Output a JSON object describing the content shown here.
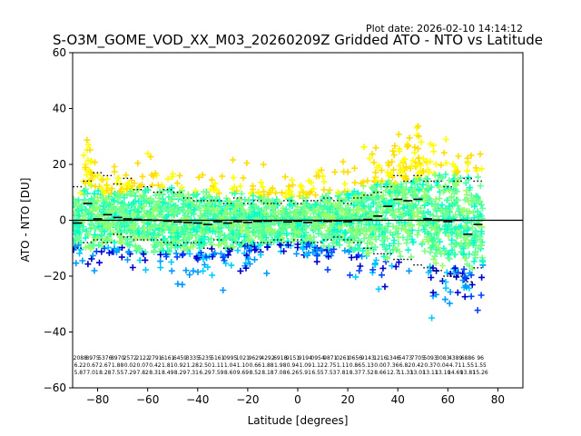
{
  "plot_date": "Plot date: 2026-02-10 14:14:12",
  "chart_data": {
    "type": "scatter",
    "title": "S-O3M_GOME_VOD_XX_M03_20260209Z Gridded ATO - NTO vs Latitude",
    "xlabel": "Latitude [degrees]",
    "ylabel": "ATO - NTO [DU]",
    "xlim": [
      -90,
      90
    ],
    "ylim": [
      -60,
      60
    ],
    "xticks": [
      -80,
      -60,
      -40,
      -20,
      0,
      20,
      40,
      60,
      80
    ],
    "yticks": [
      -60,
      -40,
      -20,
      0,
      20,
      40,
      60
    ],
    "xtick_labels": [
      "−80",
      "−60",
      "−40",
      "−20",
      "0",
      "20",
      "40",
      "60",
      "80"
    ],
    "ytick_labels": [
      "−60",
      "−40",
      "−20",
      "0",
      "20",
      "40",
      "60"
    ],
    "grid": false,
    "zero_line": 0,
    "point_colors": [
      "#66ff99",
      "#7fff7f",
      "#99ff66",
      "#00ffcc",
      "#33ffaa",
      "#ffff00",
      "#ffdd00",
      "#00ccff",
      "#0099ff",
      "#0044ff",
      "#0000cc"
    ],
    "bins": [
      {
        "lat": -88,
        "mean": -1.0,
        "std": 7.0,
        "upper": 12,
        "lower": -10
      },
      {
        "lat": -84,
        "mean": 6.0,
        "std": 10.5,
        "upper": 14,
        "lower": -8
      },
      {
        "lat": -80,
        "mean": 0.5,
        "std": 9.0,
        "upper": 17,
        "lower": -7
      },
      {
        "lat": -76,
        "mean": 2.0,
        "std": 7.5,
        "upper": 16,
        "lower": -8
      },
      {
        "lat": -72,
        "mean": 1.0,
        "std": 8.0,
        "upper": 13,
        "lower": -5
      },
      {
        "lat": -68,
        "mean": 0.5,
        "std": 9.0,
        "upper": 15,
        "lower": -6
      },
      {
        "lat": -64,
        "mean": 0.3,
        "std": 9.5,
        "upper": 11,
        "lower": -7
      },
      {
        "lat": -60,
        "mean": 0.1,
        "std": 10.0,
        "upper": 12,
        "lower": -7
      },
      {
        "lat": -56,
        "mean": 0.0,
        "std": 9.5,
        "upper": 10,
        "lower": -7
      },
      {
        "lat": -52,
        "mean": -0.3,
        "std": 10.0,
        "upper": 11,
        "lower": -8
      },
      {
        "lat": -48,
        "mean": -0.6,
        "std": 9.5,
        "upper": 10,
        "lower": -9
      },
      {
        "lat": -44,
        "mean": -0.8,
        "std": 9.0,
        "upper": 8,
        "lower": -8
      },
      {
        "lat": -40,
        "mean": -1.0,
        "std": 8.5,
        "upper": 7,
        "lower": -8
      },
      {
        "lat": -36,
        "mean": -1.5,
        "std": 8.5,
        "upper": 7,
        "lower": -10
      },
      {
        "lat": -32,
        "mean": -0.5,
        "std": 8.0,
        "upper": 7,
        "lower": -7
      },
      {
        "lat": -28,
        "mean": -1.0,
        "std": 8.5,
        "upper": 6,
        "lower": -10
      },
      {
        "lat": -24,
        "mean": -0.5,
        "std": 8.0,
        "upper": 8,
        "lower": -8
      },
      {
        "lat": -20,
        "mean": -0.8,
        "std": 7.5,
        "upper": 6,
        "lower": -9
      },
      {
        "lat": -16,
        "mean": -0.4,
        "std": 7.5,
        "upper": 7,
        "lower": -8
      },
      {
        "lat": -12,
        "mean": -0.3,
        "std": 7.0,
        "upper": 6,
        "lower": -8
      },
      {
        "lat": -8,
        "mean": -0.1,
        "std": 7.0,
        "upper": 6,
        "lower": -7
      },
      {
        "lat": -4,
        "mean": -0.6,
        "std": 7.0,
        "upper": 7,
        "lower": -8
      },
      {
        "lat": 0,
        "mean": -0.3,
        "std": 6.5,
        "upper": 6,
        "lower": -7
      },
      {
        "lat": 4,
        "mean": -0.8,
        "std": 7.0,
        "upper": 7,
        "lower": -8
      },
      {
        "lat": 8,
        "mean": -0.2,
        "std": 7.5,
        "upper": 7,
        "lower": -8
      },
      {
        "lat": 12,
        "mean": -0.4,
        "std": 8.0,
        "upper": 8,
        "lower": -7
      },
      {
        "lat": 16,
        "mean": -0.2,
        "std": 8.0,
        "upper": 7,
        "lower": -6
      },
      {
        "lat": 20,
        "mean": -0.5,
        "std": 8.5,
        "upper": 6,
        "lower": -7
      },
      {
        "lat": 24,
        "mean": 0.0,
        "std": 9.0,
        "upper": 8,
        "lower": -8
      },
      {
        "lat": 28,
        "mean": 0.3,
        "std": 10.5,
        "upper": 9,
        "lower": -10
      },
      {
        "lat": 32,
        "mean": 1.5,
        "std": 11.5,
        "upper": 10,
        "lower": -12
      },
      {
        "lat": 36,
        "mean": 5.0,
        "std": 12.0,
        "upper": 12,
        "lower": -12
      },
      {
        "lat": 40,
        "mean": 7.5,
        "std": 11.0,
        "upper": 16,
        "lower": -14
      },
      {
        "lat": 44,
        "mean": 7.0,
        "std": 12.0,
        "upper": 14,
        "lower": -14
      },
      {
        "lat": 48,
        "mean": 7.5,
        "std": 13.0,
        "upper": 16,
        "lower": -16
      },
      {
        "lat": 52,
        "mean": 0.5,
        "std": 13.5,
        "upper": 14,
        "lower": -17
      },
      {
        "lat": 56,
        "mean": 0.0,
        "std": 14.0,
        "upper": 14,
        "lower": -18
      },
      {
        "lat": 60,
        "mean": -0.5,
        "std": 14.5,
        "upper": 12,
        "lower": -20
      },
      {
        "lat": 64,
        "mean": 0.0,
        "std": 14.0,
        "upper": 14,
        "lower": -20
      },
      {
        "lat": 68,
        "mean": -5.0,
        "std": 14.5,
        "upper": 15,
        "lower": -22
      },
      {
        "lat": 72,
        "mean": -1.5,
        "std": 13.0,
        "upper": 14,
        "lower": -17
      }
    ],
    "bin_stats": [
      {
        "n": "2088",
        "mean": "6.22",
        "std": "5.87"
      },
      {
        "n": "8975",
        "mean": "0.67",
        "std": "7.01"
      },
      {
        "n": "5376",
        "mean": "2.67",
        "std": "8.28"
      },
      {
        "n": "8970",
        "mean": "1.88",
        "std": "7.55"
      },
      {
        "n": "2572",
        "mean": "0.02",
        "std": "7.29"
      },
      {
        "n": "2122",
        "mean": "0.07",
        "std": "7.82"
      },
      {
        "n": "2791",
        "mean": "0.42",
        "std": "8.31"
      },
      {
        "n": "6161",
        "mean": "1.81",
        "std": "8.49"
      },
      {
        "n": "6459",
        "mean": "0.92",
        "std": "8.29"
      },
      {
        "n": "3335",
        "mean": "1.28",
        "std": "7.31"
      },
      {
        "n": "5235",
        "mean": "2.50",
        "std": "6.29"
      },
      {
        "n": "5161",
        "mean": "1.11",
        "std": "7.59"
      },
      {
        "n": "0995",
        "mean": "1.04",
        "std": "8.60"
      },
      {
        "n": "1021",
        "mean": "1.10",
        "std": "9.69"
      },
      {
        "n": "9629",
        "mean": "0.66",
        "std": "8.52"
      },
      {
        "n": "4292",
        "mean": "1.88",
        "std": "8.18"
      },
      {
        "n": "6918",
        "mean": "1.98",
        "std": "7.08"
      },
      {
        "n": "9151",
        "mean": "0.94",
        "std": "6.26"
      },
      {
        "n": "9194",
        "mean": "1.09",
        "std": "5.91"
      },
      {
        "n": "0954",
        "mean": "1.12",
        "std": "6.55"
      },
      {
        "n": "9871",
        "mean": "2.75",
        "std": "7.53"
      },
      {
        "n": "0261",
        "mean": "1.11",
        "std": "7.81"
      },
      {
        "n": "0656",
        "mean": "0.86",
        "std": "8.37"
      },
      {
        "n": "9143",
        "mean": "5.13",
        "std": "7.52"
      },
      {
        "n": "1216",
        "mean": "0.00",
        "std": "8.66"
      },
      {
        "n": "1346",
        "mean": "7.36",
        "std": "12.7"
      },
      {
        "n": "5473",
        "mean": "6.82",
        "std": "11.33"
      },
      {
        "n": "7705",
        "mean": "0.42",
        "std": "13.01"
      },
      {
        "n": "5093",
        "mean": "0.37",
        "std": "13.11"
      },
      {
        "n": "3083",
        "mean": "0.04",
        "std": "13.10"
      },
      {
        "n": "4389",
        "mean": "4.71",
        "std": "14.69"
      },
      {
        "n": "6886",
        "mean": "1.55",
        "std": "13.81"
      },
      {
        "n": "96",
        "mean": "1.55",
        "std": "15.26"
      }
    ]
  }
}
